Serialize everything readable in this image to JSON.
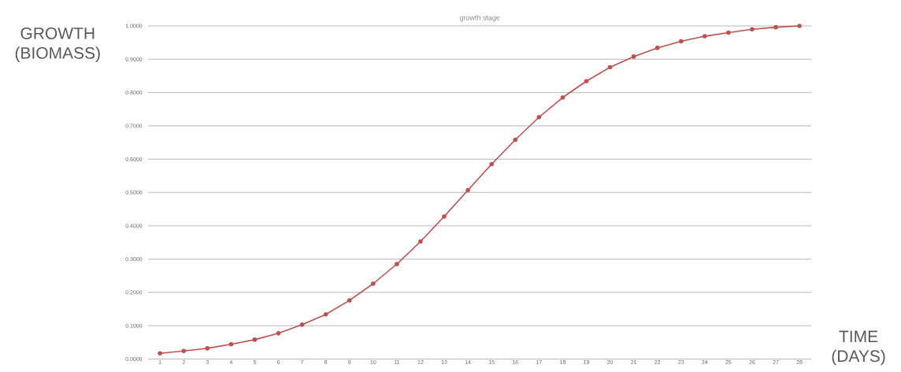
{
  "chart_data": {
    "type": "line",
    "title": "growth stage",
    "xlabel": "TIME (DAYS)",
    "ylabel": "GROWTH (BIOMASS)",
    "categories": [
      "1",
      "2",
      "3",
      "4",
      "5",
      "6",
      "7",
      "8",
      "9",
      "10",
      "11",
      "12",
      "13",
      "14",
      "15",
      "16",
      "17",
      "18",
      "19",
      "20",
      "21",
      "22",
      "23",
      "24",
      "25",
      "26",
      "27",
      "28"
    ],
    "series": [
      {
        "color": "#c0504d",
        "values": [
          0.017,
          0.024,
          0.032,
          0.044,
          0.058,
          0.077,
          0.103,
          0.134,
          0.176,
          0.226,
          0.285,
          0.353,
          0.428,
          0.507,
          0.585,
          0.658,
          0.726,
          0.785,
          0.834,
          0.876,
          0.908,
          0.934,
          0.954,
          0.969,
          0.98,
          0.99,
          0.996,
          1.0
        ]
      }
    ],
    "ylim": [
      0,
      1
    ],
    "yticks": [
      {
        "value": 0,
        "label": "0.0000"
      },
      {
        "value": 0.1,
        "label": "0.1000"
      },
      {
        "value": 0.2,
        "label": "0.2000"
      },
      {
        "value": 0.3,
        "label": "0.3000"
      },
      {
        "value": 0.4,
        "label": "0.4000"
      },
      {
        "value": 0.5,
        "label": "0.5000"
      },
      {
        "value": 0.6,
        "label": "0.6000"
      },
      {
        "value": 0.7,
        "label": "0.7000"
      },
      {
        "value": 0.8,
        "label": "0.8000"
      },
      {
        "value": 0.9,
        "label": "0.9000"
      },
      {
        "value": 1,
        "label": "1.0000"
      }
    ],
    "grid": "y",
    "marker": "circle",
    "line_style": "solid"
  }
}
